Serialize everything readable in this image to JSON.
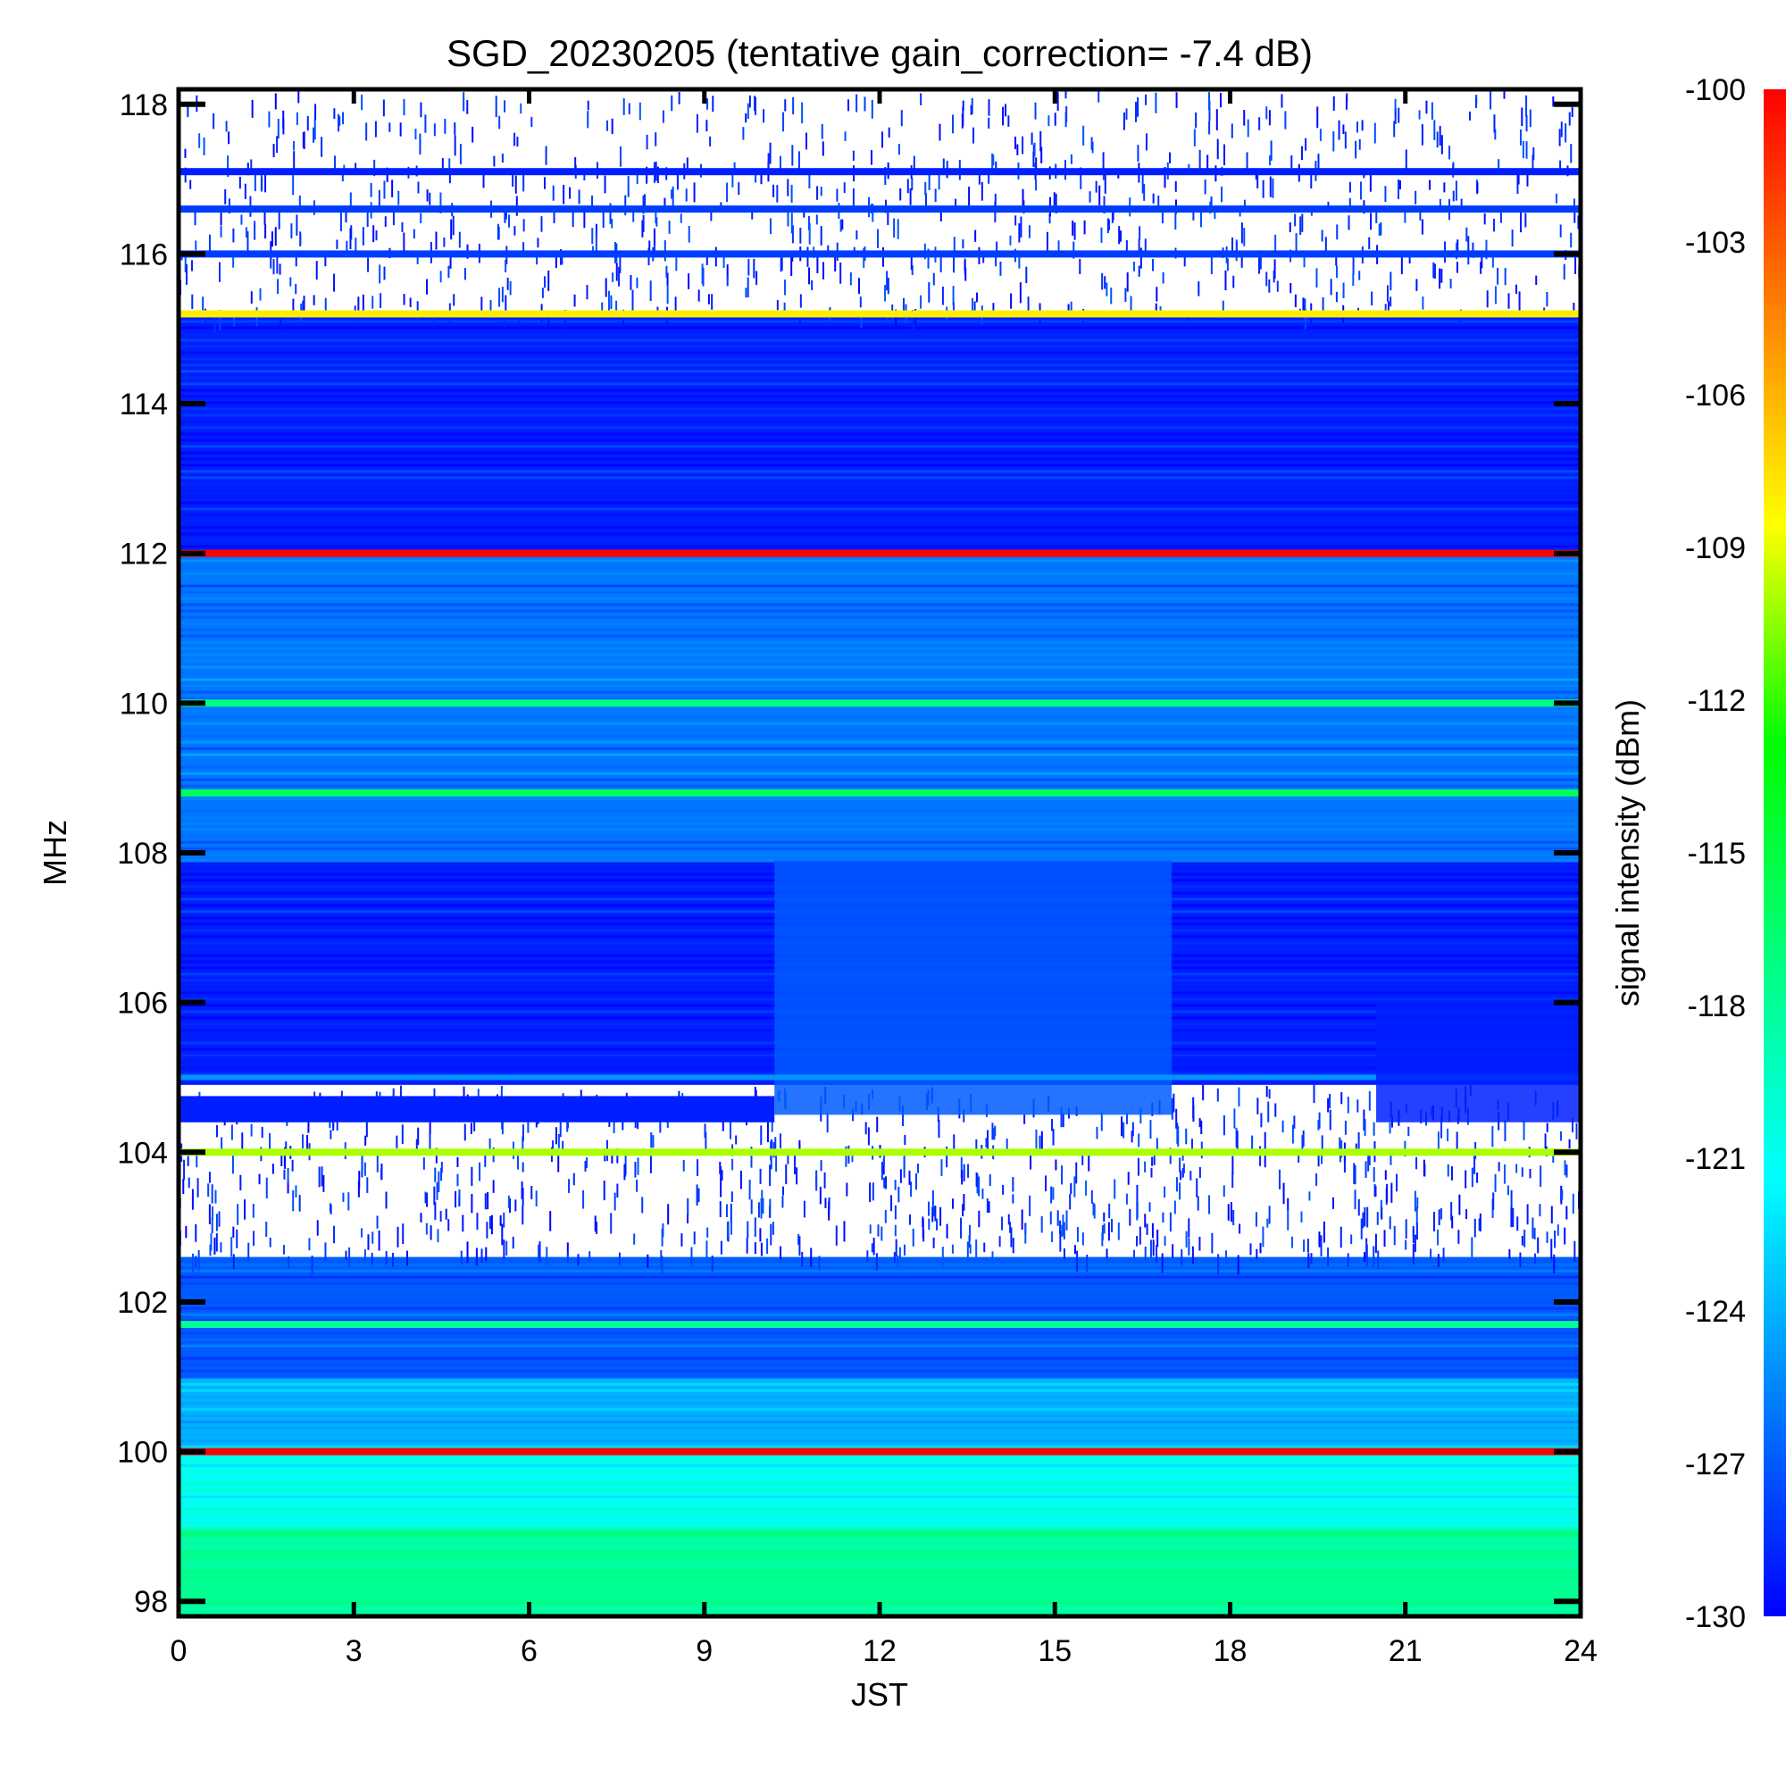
{
  "chart_data": {
    "type": "heatmap",
    "title": "SGD_20230205 (tentative gain_correction= -7.4 dB)",
    "xlabel": "JST",
    "ylabel": "MHz",
    "xlim": [
      0,
      24
    ],
    "ylim": [
      97.8,
      118.2
    ],
    "x_ticks": [
      "0",
      "3",
      "6",
      "9",
      "12",
      "15",
      "18",
      "21",
      "24"
    ],
    "y_ticks": [
      "98",
      "100",
      "102",
      "104",
      "106",
      "108",
      "110",
      "112",
      "114",
      "116",
      "118"
    ],
    "colorbar": {
      "label": "signal intensity (dBm)",
      "range": [
        -130,
        -100
      ],
      "ticks": [
        "-100",
        "-103",
        "-106",
        "-109",
        "-112",
        "-115",
        "-118",
        "-121",
        "-124",
        "-127",
        "-130"
      ],
      "colormap": [
        "#0000ff",
        "#0080ff",
        "#00ffff",
        "#00ff80",
        "#00ff00",
        "#ffff00",
        "#ff8000",
        "#ff0000"
      ]
    },
    "background_intensity_dBm": [
      {
        "f_from": 97.8,
        "f_to": 99.0,
        "dBm": -118
      },
      {
        "f_from": 99.0,
        "f_to": 100.0,
        "dBm": -121
      },
      {
        "f_from": 100.0,
        "f_to": 101.0,
        "dBm": -124
      },
      {
        "f_from": 101.0,
        "f_to": 102.6,
        "dBm": -127
      },
      {
        "f_from": 102.6,
        "f_to": 104.9,
        "dBm": null
      },
      {
        "f_from": 104.9,
        "f_to": 107.9,
        "dBm": -129
      },
      {
        "f_from": 107.9,
        "f_to": 112.0,
        "dBm": -126
      },
      {
        "f_from": 112.0,
        "f_to": 115.2,
        "dBm": -129
      },
      {
        "f_from": 115.2,
        "f_to": 118.2,
        "dBm": null
      }
    ],
    "strong_carriers": [
      {
        "freq_MHz": 100.0,
        "dBm": -100
      },
      {
        "freq_MHz": 101.7,
        "dBm": -118
      },
      {
        "freq_MHz": 104.0,
        "dBm": -110
      },
      {
        "freq_MHz": 108.8,
        "dBm": -116
      },
      {
        "freq_MHz": 110.0,
        "dBm": -117
      },
      {
        "freq_MHz": 112.0,
        "dBm": -100
      },
      {
        "freq_MHz": 115.2,
        "dBm": -108
      },
      {
        "freq_MHz": 116.0,
        "dBm": -128
      },
      {
        "freq_MHz": 116.6,
        "dBm": -128
      },
      {
        "freq_MHz": 117.1,
        "dBm": -129
      }
    ],
    "daytime_enhancement": {
      "start_JST": 10.2,
      "end_JST": 17.0,
      "freq_from_MHz": 104.5,
      "freq_to_MHz": 107.9,
      "dBm": -127
    },
    "legend": "right (colorbar)",
    "grid": false
  }
}
